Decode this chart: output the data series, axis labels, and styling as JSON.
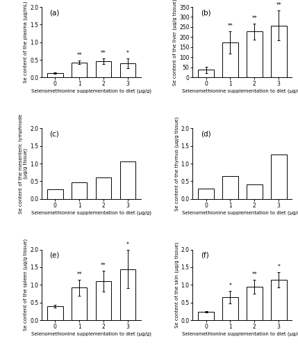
{
  "panels": [
    {
      "label": "(a)",
      "ylabel": "Se content of the plasma (μg/mL)",
      "ylim": [
        0,
        2.0
      ],
      "yticks": [
        0.0,
        0.5,
        1.0,
        1.5,
        2.0
      ],
      "values": [
        0.13,
        0.43,
        0.46,
        0.4
      ],
      "errors": [
        0.02,
        0.05,
        0.07,
        0.13
      ],
      "stars": [
        "",
        "**",
        "**",
        "*"
      ],
      "has_error": [
        true,
        true,
        true,
        true
      ]
    },
    {
      "label": "(b)",
      "ylabel": "Se content of the liver (μg/g tissue)",
      "ylim": [
        0,
        350
      ],
      "yticks": [
        0,
        50,
        100,
        150,
        200,
        250,
        300,
        350
      ],
      "values": [
        38,
        175,
        228,
        258
      ],
      "errors": [
        15,
        55,
        40,
        75
      ],
      "stars": [
        "",
        "**",
        "**",
        "**"
      ],
      "has_error": [
        true,
        true,
        true,
        true
      ]
    },
    {
      "label": "(c)",
      "ylabel": "Se content of the mesenteric lymphnode\n(μg/g tissue)",
      "ylim": [
        0,
        2.0
      ],
      "yticks": [
        0.0,
        0.5,
        1.0,
        1.5,
        2.0
      ],
      "values": [
        0.27,
        0.46,
        0.6,
        1.05
      ],
      "errors": [
        null,
        null,
        null,
        null
      ],
      "stars": [
        "",
        "",
        "",
        ""
      ],
      "has_error": [
        false,
        false,
        false,
        false
      ]
    },
    {
      "label": "(d)",
      "ylabel": "Se content of the thymus (μg/g tissue)",
      "ylim": [
        0,
        2.0
      ],
      "yticks": [
        0.0,
        0.5,
        1.0,
        1.5,
        2.0
      ],
      "values": [
        0.28,
        0.65,
        0.4,
        1.25
      ],
      "errors": [
        null,
        null,
        null,
        null
      ],
      "stars": [
        "",
        "",
        "",
        ""
      ],
      "has_error": [
        false,
        false,
        false,
        false
      ]
    },
    {
      "label": "(e)",
      "ylabel": "Se content of the spleen (μg/g tissue)",
      "ylim": [
        0,
        2.0
      ],
      "yticks": [
        0.0,
        0.5,
        1.0,
        1.5,
        2.0
      ],
      "values": [
        0.4,
        0.92,
        1.1,
        1.45
      ],
      "errors": [
        0.04,
        0.22,
        0.3,
        0.55
      ],
      "stars": [
        "",
        "**",
        "**",
        "*"
      ],
      "has_error": [
        true,
        true,
        true,
        true
      ]
    },
    {
      "label": "(f)",
      "ylabel": "Se content of the skin (μg/g tissue)",
      "ylim": [
        0,
        2.0
      ],
      "yticks": [
        0.0,
        0.5,
        1.0,
        1.5,
        2.0
      ],
      "values": [
        0.23,
        0.65,
        0.95,
        1.15
      ],
      "errors": [
        0.02,
        0.18,
        0.2,
        0.22
      ],
      "stars": [
        "",
        "*",
        "**",
        "*"
      ],
      "has_error": [
        true,
        true,
        true,
        true
      ]
    }
  ],
  "xlabel": "Selenomethionine supplementation to diet (μg/g)",
  "xticks": [
    0,
    1,
    2,
    3
  ],
  "bar_color": "white",
  "bar_edgecolor": "black",
  "bar_width": 0.65,
  "figure_bg": "white"
}
